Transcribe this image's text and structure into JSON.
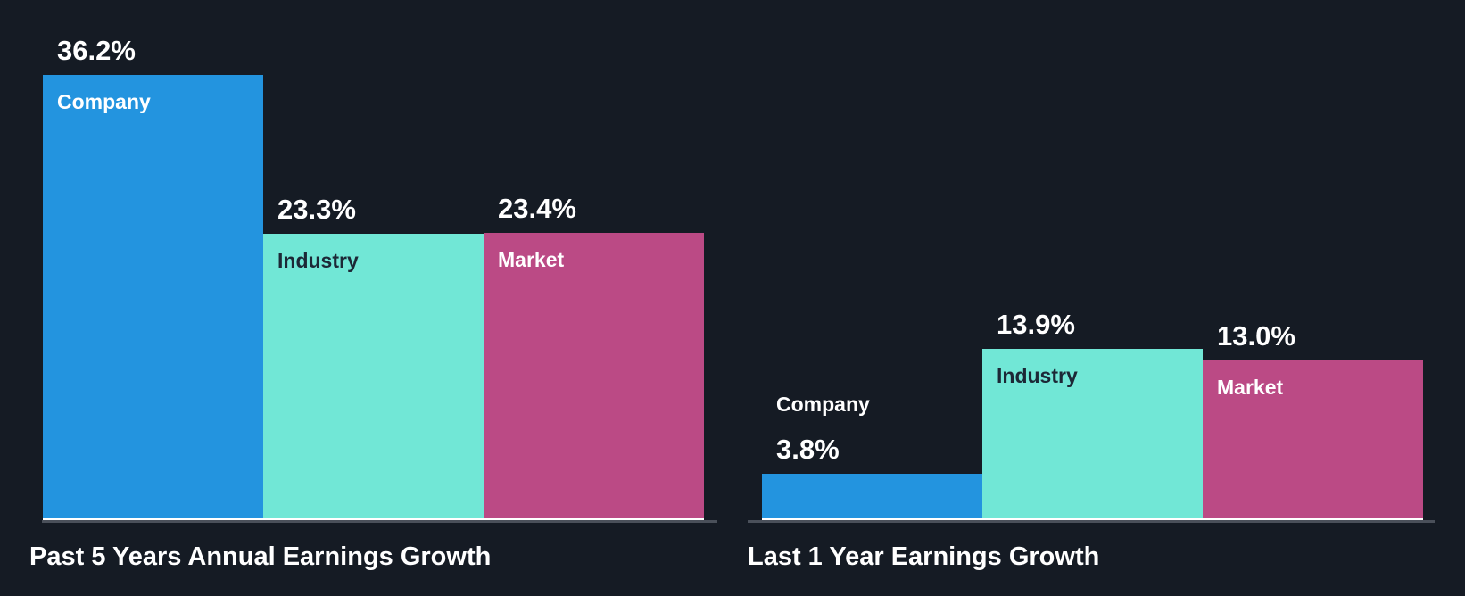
{
  "chart_data": [
    {
      "type": "bar",
      "title": "Past 5 Years Annual Earnings Growth",
      "categories": [
        "Company",
        "Industry",
        "Market"
      ],
      "values": [
        36.2,
        23.3,
        23.4
      ],
      "value_labels": [
        "36.2%",
        "23.3%",
        "23.4%"
      ],
      "unit": "%"
    },
    {
      "type": "bar",
      "title": "Last 1 Year Earnings Growth",
      "categories": [
        "Company",
        "Industry",
        "Market"
      ],
      "values": [
        3.8,
        13.9,
        13.0
      ],
      "value_labels": [
        "3.8%",
        "13.9%",
        "13.0%"
      ],
      "unit": "%"
    }
  ],
  "colors": {
    "Company": "#2394df",
    "Industry": "#71e7d6",
    "Market": "#bb4a85",
    "background": "#151b24"
  }
}
